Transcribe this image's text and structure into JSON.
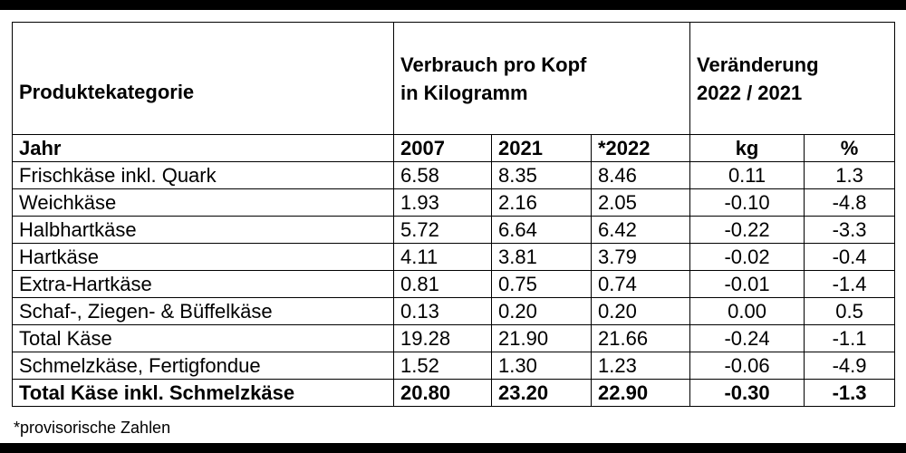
{
  "header": {
    "category": "Produktekategorie",
    "consumption_line1": "Verbrauch pro Kopf",
    "consumption_line2": "in Kilogramm",
    "change_line1": "Veränderung",
    "change_line2": "2022 / 2021"
  },
  "subheader": {
    "year_label": "Jahr",
    "y2007": "2007",
    "y2021": "2021",
    "y2022": "*2022",
    "kg": "kg",
    "pct": "%"
  },
  "rows": [
    {
      "name": "Frischkäse inkl. Quark",
      "v2007": "6.58",
      "v2021": "8.35",
      "v2022": "8.46",
      "kg": "0.11",
      "pct": "1.3"
    },
    {
      "name": "Weichkäse",
      "v2007": "1.93",
      "v2021": "2.16",
      "v2022": "2.05",
      "kg": "-0.10",
      "pct": "-4.8"
    },
    {
      "name": "Halbhartkäse",
      "v2007": "5.72",
      "v2021": "6.64",
      "v2022": "6.42",
      "kg": "-0.22",
      "pct": "-3.3"
    },
    {
      "name": "Hartkäse",
      "v2007": "4.11",
      "v2021": "3.81",
      "v2022": "3.79",
      "kg": "-0.02",
      "pct": "-0.4"
    },
    {
      "name": "Extra-Hartkäse",
      "v2007": "0.81",
      "v2021": "0.75",
      "v2022": "0.74",
      "kg": "-0.01",
      "pct": "-1.4"
    },
    {
      "name": "Schaf-, Ziegen- & Büffelkäse",
      "v2007": "0.13",
      "v2021": "0.20",
      "v2022": "0.20",
      "kg": "0.00",
      "pct": "0.5"
    },
    {
      "name": "Total Käse",
      "v2007": "19.28",
      "v2021": "21.90",
      "v2022": "21.66",
      "kg": "-0.24",
      "pct": "-1.1"
    },
    {
      "name": "Schmelzkäse, Fertigfondue",
      "v2007": "1.52",
      "v2021": "1.30",
      "v2022": "1.23",
      "kg": "-0.06",
      "pct": "-4.9"
    }
  ],
  "total": {
    "name": "Total Käse inkl. Schmelzkäse",
    "v2007": "20.80",
    "v2021": "23.20",
    "v2022": "22.90",
    "kg": "-0.30",
    "pct": "-1.3"
  },
  "footnote": "*provisorische Zahlen"
}
